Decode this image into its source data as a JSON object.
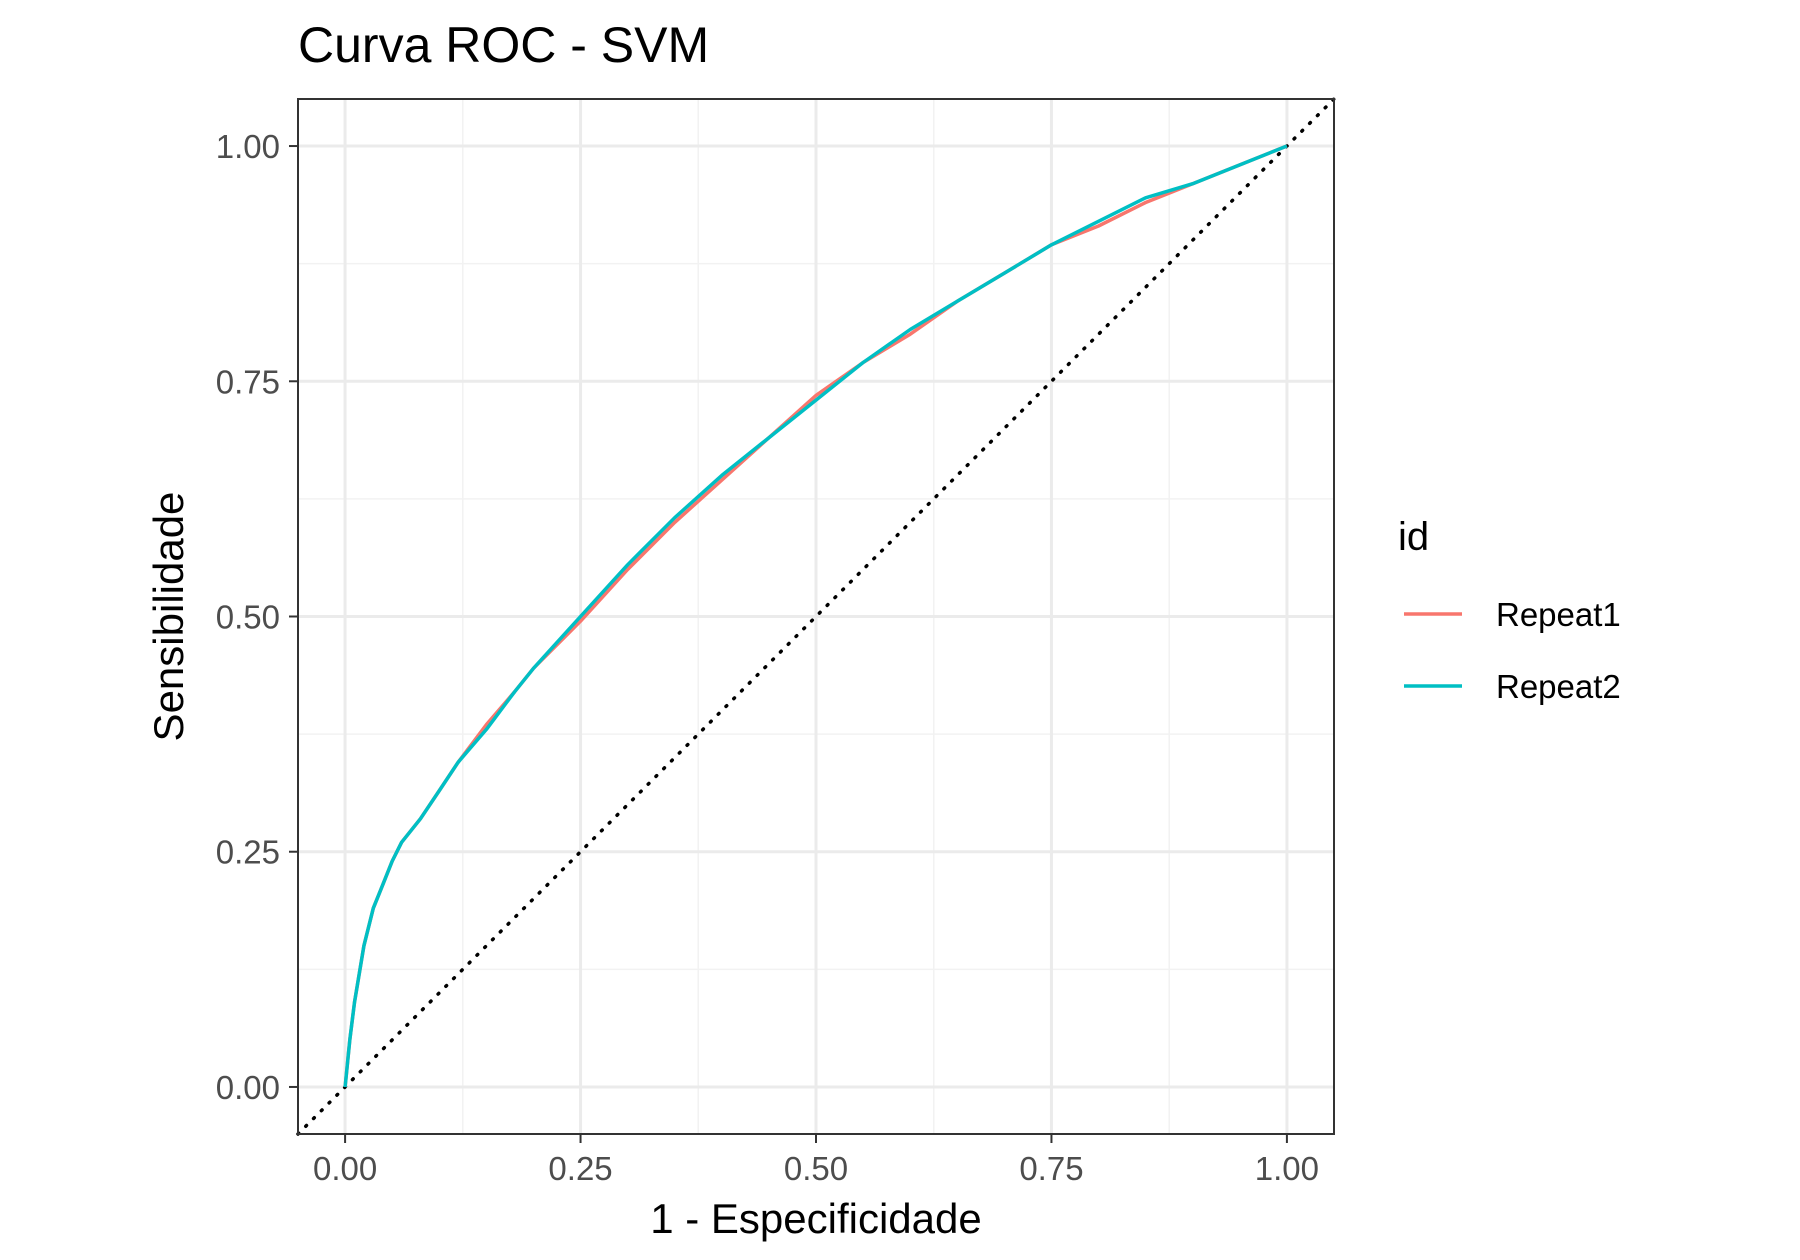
{
  "chart_data": {
    "type": "line",
    "title": "Curva ROC - SVM",
    "xlabel": "1 - Especificidade",
    "ylabel": "Sensibilidade",
    "xlim": [
      -0.05,
      1.05
    ],
    "ylim": [
      -0.05,
      1.05
    ],
    "x_ticks": [
      "0.00",
      "0.25",
      "0.50",
      "0.75",
      "1.00"
    ],
    "y_ticks": [
      "0.00",
      "0.25",
      "0.50",
      "0.75",
      "1.00"
    ],
    "tick_values": [
      0,
      0.25,
      0.5,
      0.75,
      1.0
    ],
    "grid": true,
    "legend": {
      "title": "id",
      "position": "right"
    },
    "reference_line": {
      "style": "dotted",
      "color": "#000000",
      "from": [
        -0.05,
        -0.05
      ],
      "to": [
        1.05,
        1.05
      ]
    },
    "series": [
      {
        "name": "Repeat1",
        "color": "#F8766D",
        "points": [
          [
            0.0,
            0.0
          ],
          [
            0.005,
            0.05
          ],
          [
            0.01,
            0.09
          ],
          [
            0.02,
            0.15
          ],
          [
            0.03,
            0.19
          ],
          [
            0.04,
            0.215
          ],
          [
            0.05,
            0.24
          ],
          [
            0.06,
            0.26
          ],
          [
            0.08,
            0.285
          ],
          [
            0.1,
            0.315
          ],
          [
            0.12,
            0.345
          ],
          [
            0.15,
            0.385
          ],
          [
            0.18,
            0.42
          ],
          [
            0.2,
            0.445
          ],
          [
            0.25,
            0.495
          ],
          [
            0.3,
            0.55
          ],
          [
            0.35,
            0.6
          ],
          [
            0.4,
            0.645
          ],
          [
            0.45,
            0.69
          ],
          [
            0.5,
            0.735
          ],
          [
            0.55,
            0.77
          ],
          [
            0.6,
            0.8
          ],
          [
            0.65,
            0.835
          ],
          [
            0.7,
            0.865
          ],
          [
            0.75,
            0.895
          ],
          [
            0.8,
            0.915
          ],
          [
            0.85,
            0.94
          ],
          [
            0.9,
            0.96
          ],
          [
            0.95,
            0.98
          ],
          [
            1.0,
            1.0
          ]
        ]
      },
      {
        "name": "Repeat2",
        "color": "#00BFC4",
        "points": [
          [
            0.0,
            0.0
          ],
          [
            0.005,
            0.05
          ],
          [
            0.01,
            0.09
          ],
          [
            0.02,
            0.15
          ],
          [
            0.03,
            0.19
          ],
          [
            0.04,
            0.215
          ],
          [
            0.05,
            0.24
          ],
          [
            0.06,
            0.26
          ],
          [
            0.08,
            0.285
          ],
          [
            0.1,
            0.315
          ],
          [
            0.12,
            0.345
          ],
          [
            0.15,
            0.38
          ],
          [
            0.18,
            0.42
          ],
          [
            0.2,
            0.445
          ],
          [
            0.25,
            0.5
          ],
          [
            0.3,
            0.555
          ],
          [
            0.35,
            0.605
          ],
          [
            0.4,
            0.65
          ],
          [
            0.45,
            0.69
          ],
          [
            0.5,
            0.73
          ],
          [
            0.55,
            0.77
          ],
          [
            0.6,
            0.805
          ],
          [
            0.65,
            0.835
          ],
          [
            0.7,
            0.865
          ],
          [
            0.75,
            0.895
          ],
          [
            0.8,
            0.92
          ],
          [
            0.85,
            0.945
          ],
          [
            0.9,
            0.96
          ],
          [
            0.95,
            0.98
          ],
          [
            1.0,
            1.0
          ]
        ]
      }
    ]
  }
}
